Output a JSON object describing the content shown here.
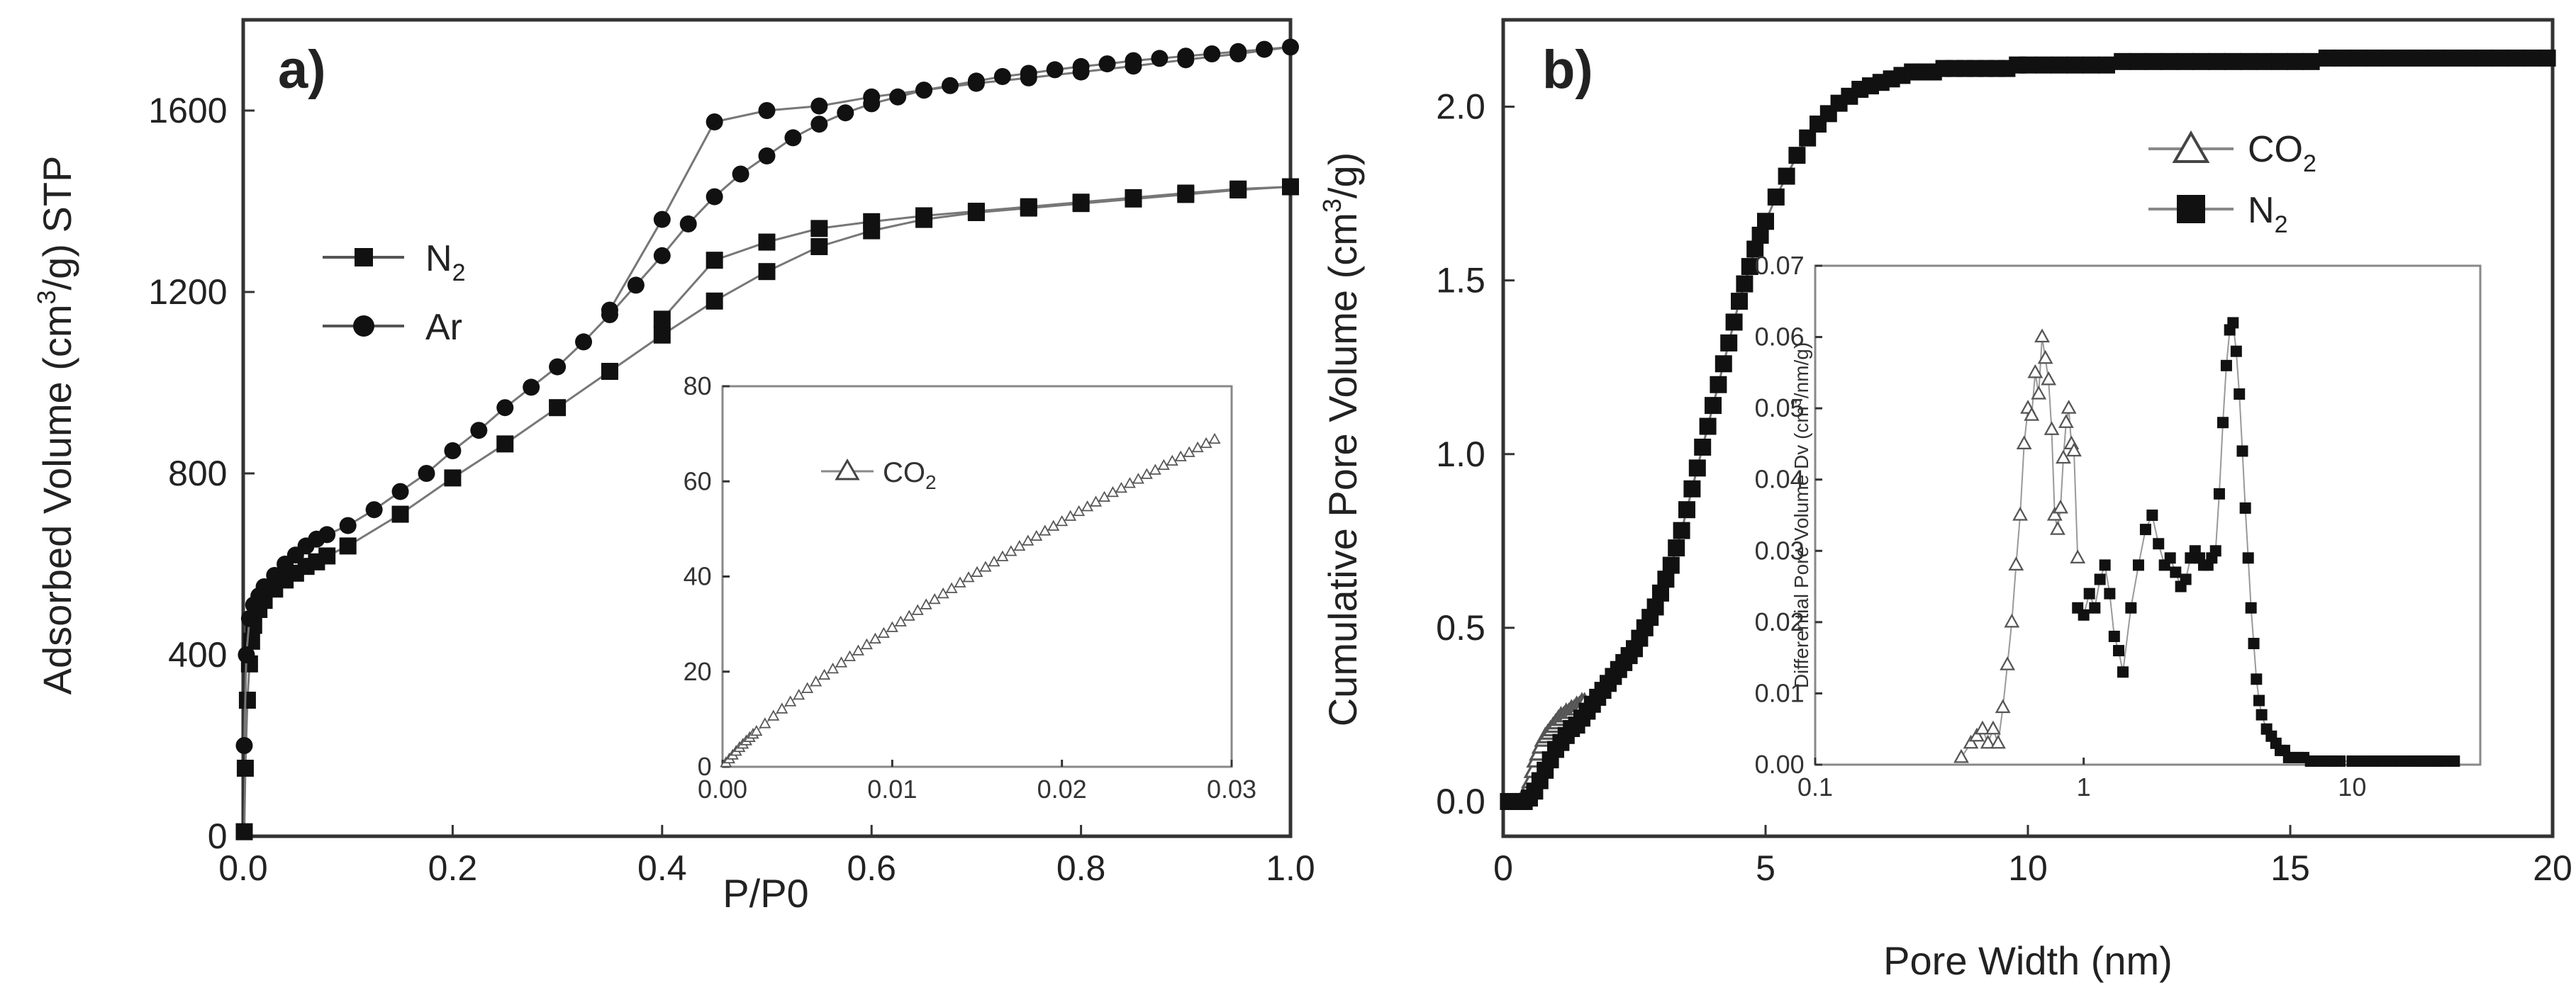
{
  "chart_data": [
    {
      "panel_label": "a)",
      "type": "line",
      "xlabel": "P/P0",
      "ylabel_parts": [
        "Adsorbed Volume (cm",
        "3",
        "/g) STP"
      ],
      "xlim": [
        0,
        1.0
      ],
      "ylim": [
        0,
        1800
      ],
      "xticks": [
        "0.0",
        "0.2",
        "0.4",
        "0.6",
        "0.8",
        "1.0"
      ],
      "yticks": [
        "0",
        "400",
        "800",
        "1200",
        "1600"
      ],
      "series": [
        {
          "name": "N2",
          "label": "N",
          "sub": "2",
          "marker": "square",
          "x": [
            0.001,
            0.002,
            0.004,
            0.006,
            0.008,
            0.01,
            0.015,
            0.02,
            0.03,
            0.04,
            0.05,
            0.06,
            0.07,
            0.08,
            0.1,
            0.15,
            0.2,
            0.25,
            0.3,
            0.35,
            0.4,
            0.45,
            0.5,
            0.55,
            0.6,
            0.65,
            0.7,
            0.75,
            0.8,
            0.85,
            0.9,
            0.95,
            1.0,
            0.95,
            0.9,
            0.85,
            0.8,
            0.75,
            0.7,
            0.65,
            0.6,
            0.55,
            0.5,
            0.45,
            0.4
          ],
          "y": [
            10,
            150,
            300,
            380,
            430,
            465,
            500,
            520,
            545,
            565,
            580,
            595,
            605,
            618,
            640,
            710,
            790,
            865,
            945,
            1025,
            1105,
            1180,
            1245,
            1300,
            1335,
            1360,
            1375,
            1385,
            1395,
            1405,
            1415,
            1425,
            1432,
            1427,
            1418,
            1408,
            1398,
            1388,
            1378,
            1368,
            1355,
            1340,
            1310,
            1270,
            1140
          ]
        },
        {
          "name": "Ar",
          "label": "Ar",
          "marker": "circle",
          "x": [
            0.001,
            0.003,
            0.006,
            0.01,
            0.015,
            0.02,
            0.03,
            0.04,
            0.05,
            0.06,
            0.07,
            0.08,
            0.1,
            0.125,
            0.15,
            0.175,
            0.2,
            0.225,
            0.25,
            0.275,
            0.3,
            0.325,
            0.35,
            0.375,
            0.4,
            0.425,
            0.45,
            0.475,
            0.5,
            0.525,
            0.55,
            0.575,
            0.6,
            0.625,
            0.65,
            0.675,
            0.7,
            0.725,
            0.75,
            0.775,
            0.8,
            0.825,
            0.85,
            0.875,
            0.9,
            0.925,
            0.95,
            0.975,
            1.0,
            0.95,
            0.9,
            0.85,
            0.8,
            0.75,
            0.7,
            0.65,
            0.6,
            0.55,
            0.5,
            0.45,
            0.4,
            0.35
          ],
          "y": [
            200,
            400,
            480,
            510,
            530,
            550,
            575,
            600,
            620,
            640,
            655,
            665,
            685,
            720,
            760,
            800,
            850,
            895,
            945,
            990,
            1035,
            1090,
            1150,
            1215,
            1280,
            1350,
            1410,
            1460,
            1500,
            1540,
            1570,
            1595,
            1615,
            1630,
            1645,
            1655,
            1665,
            1675,
            1682,
            1690,
            1697,
            1703,
            1710,
            1715,
            1720,
            1725,
            1730,
            1735,
            1740,
            1725,
            1712,
            1698,
            1685,
            1672,
            1660,
            1645,
            1630,
            1610,
            1600,
            1575,
            1360,
            1160
          ]
        }
      ],
      "inset": {
        "type": "line",
        "xlim": [
          0,
          0.03
        ],
        "ylim": [
          0,
          80
        ],
        "xticks": [
          "0.00",
          "0.01",
          "0.02",
          "0.03"
        ],
        "yticks": [
          "0",
          "20",
          "40",
          "60",
          "80"
        ],
        "series": [
          {
            "name": "CO2",
            "label": "CO",
            "sub": "2",
            "marker": "triangle-open",
            "x": [
              0.0002,
              0.0004,
              0.0006,
              0.0008,
              0.001,
              0.0012,
              0.0014,
              0.0016,
              0.0018,
              0.002,
              0.0025,
              0.003,
              0.0035,
              0.004,
              0.0045,
              0.005,
              0.0055,
              0.006,
              0.0065,
              0.007,
              0.0075,
              0.008,
              0.0085,
              0.009,
              0.0095,
              0.01,
              0.0105,
              0.011,
              0.0115,
              0.012,
              0.0125,
              0.013,
              0.0135,
              0.014,
              0.0145,
              0.015,
              0.0155,
              0.016,
              0.0165,
              0.017,
              0.0175,
              0.018,
              0.0185,
              0.019,
              0.0195,
              0.02,
              0.0205,
              0.021,
              0.0215,
              0.022,
              0.0225,
              0.023,
              0.0235,
              0.024,
              0.0245,
              0.025,
              0.0255,
              0.026,
              0.0265,
              0.027,
              0.0275,
              0.028,
              0.0285,
              0.029
            ],
            "y": [
              0.8,
              1.6,
              2.4,
              3.2,
              4.0,
              4.7,
              5.4,
              6.1,
              6.8,
              7.4,
              9.0,
              10.6,
              12.1,
              13.6,
              15.0,
              16.4,
              17.8,
              19.2,
              20.5,
              21.8,
              23.1,
              24.3,
              25.6,
              26.8,
              28.0,
              29.2,
              30.4,
              31.6,
              32.8,
              34.0,
              35.1,
              36.3,
              37.4,
              38.6,
              39.7,
              40.8,
              41.9,
              43.0,
              44.1,
              45.2,
              46.3,
              47.4,
              48.4,
              49.5,
              50.5,
              51.5,
              52.6,
              53.6,
              54.6,
              55.6,
              56.6,
              57.6,
              58.5,
              59.5,
              60.4,
              61.4,
              62.3,
              63.3,
              64.2,
              65.1,
              66.0,
              67.0,
              67.9,
              68.8
            ]
          }
        ]
      }
    },
    {
      "panel_label": "b)",
      "type": "scatter",
      "xlabel": "Pore Width (nm)",
      "ylabel_parts": [
        "Cumulative Pore Volume (cm",
        "3",
        "/g)"
      ],
      "xlim": [
        0,
        20
      ],
      "ylim": [
        -0.1,
        2.25
      ],
      "xticks": [
        "0",
        "5",
        "10",
        "15",
        "20"
      ],
      "yticks": [
        "0.0",
        "0.5",
        "1.0",
        "1.5",
        "2.0"
      ],
      "series": [
        {
          "name": "CO2",
          "label": "CO",
          "sub": "2",
          "marker": "triangle-open",
          "x": [
            0.35,
            0.4,
            0.45,
            0.5,
            0.55,
            0.6,
            0.65,
            0.7,
            0.75,
            0.8,
            0.85,
            0.9,
            0.95,
            1.0,
            1.05,
            1.1,
            1.15,
            1.2,
            1.25,
            1.3,
            1.35,
            1.4,
            1.45,
            1.5,
            1.55
          ],
          "y": [
            0.0,
            0.01,
            0.02,
            0.04,
            0.06,
            0.09,
            0.12,
            0.14,
            0.16,
            0.18,
            0.19,
            0.2,
            0.21,
            0.22,
            0.23,
            0.24,
            0.24,
            0.25,
            0.25,
            0.26,
            0.26,
            0.27,
            0.27,
            0.28,
            0.28
          ]
        },
        {
          "name": "N2",
          "label": "N",
          "sub": "2",
          "marker": "square",
          "x": [
            0.1,
            0.2,
            0.3,
            0.4,
            0.5,
            0.6,
            0.7,
            0.8,
            0.9,
            1.0,
            1.1,
            1.2,
            1.3,
            1.4,
            1.5,
            1.6,
            1.7,
            1.8,
            1.9,
            2.0,
            2.1,
            2.2,
            2.3,
            2.4,
            2.5,
            2.6,
            2.7,
            2.8,
            2.9,
            3.0,
            3.1,
            3.2,
            3.3,
            3.4,
            3.5,
            3.6,
            3.7,
            3.8,
            3.9,
            4.0,
            4.1,
            4.2,
            4.3,
            4.4,
            4.5,
            4.6,
            4.7,
            4.8,
            4.9,
            5.0,
            5.2,
            5.4,
            5.6,
            5.8,
            6.0,
            6.2,
            6.4,
            6.6,
            6.8,
            7.0,
            7.2,
            7.4,
            7.6,
            7.8,
            8.0,
            8.2,
            8.4,
            8.6,
            8.8,
            9.0,
            9.2,
            9.4,
            9.6,
            9.8,
            10.0,
            10.3,
            10.6,
            10.9,
            11.2,
            11.5,
            11.8,
            12.1,
            12.4,
            12.7,
            13.0,
            13.3,
            13.6,
            13.9,
            14.2,
            14.5,
            14.8,
            15.1,
            15.4,
            15.7,
            16.0,
            16.3,
            16.6,
            16.9,
            17.2,
            17.5,
            17.8,
            18.1,
            18.4,
            18.7,
            19.0,
            19.3,
            19.6,
            19.9
          ],
          "y": [
            0.0,
            0.0,
            0.0,
            0.0,
            0.01,
            0.03,
            0.06,
            0.09,
            0.12,
            0.15,
            0.17,
            0.19,
            0.21,
            0.22,
            0.24,
            0.26,
            0.28,
            0.3,
            0.32,
            0.34,
            0.36,
            0.38,
            0.4,
            0.42,
            0.44,
            0.47,
            0.5,
            0.53,
            0.56,
            0.6,
            0.64,
            0.68,
            0.73,
            0.78,
            0.84,
            0.9,
            0.96,
            1.02,
            1.08,
            1.14,
            1.2,
            1.26,
            1.32,
            1.38,
            1.44,
            1.49,
            1.54,
            1.59,
            1.63,
            1.67,
            1.74,
            1.8,
            1.86,
            1.91,
            1.95,
            1.98,
            2.01,
            2.03,
            2.05,
            2.06,
            2.07,
            2.08,
            2.09,
            2.1,
            2.1,
            2.1,
            2.11,
            2.11,
            2.11,
            2.11,
            2.11,
            2.11,
            2.11,
            2.12,
            2.12,
            2.12,
            2.12,
            2.12,
            2.12,
            2.12,
            2.13,
            2.13,
            2.13,
            2.13,
            2.13,
            2.13,
            2.13,
            2.13,
            2.13,
            2.13,
            2.13,
            2.13,
            2.13,
            2.14,
            2.14,
            2.14,
            2.14,
            2.14,
            2.14,
            2.14,
            2.14,
            2.14,
            2.14,
            2.14,
            2.14,
            2.14,
            2.14,
            2.14
          ]
        }
      ],
      "inset": {
        "type": "line",
        "xscale": "log",
        "xlim": [
          0.1,
          30
        ],
        "ylim": [
          0,
          0.07
        ],
        "xticks": [
          "0.1",
          "1",
          "10"
        ],
        "yticks": [
          "0.00",
          "0.01",
          "0.02",
          "0.03",
          "0.04",
          "0.05",
          "0.06",
          "0.07"
        ],
        "ylabel_parts": [
          "Differential  Pore Volume Dv (cm",
          "3",
          "/nm/g)"
        ],
        "series": [
          {
            "name": "CO2",
            "marker": "triangle-open",
            "x": [
              0.35,
              0.38,
              0.4,
              0.42,
              0.44,
              0.46,
              0.48,
              0.5,
              0.52,
              0.54,
              0.56,
              0.58,
              0.6,
              0.62,
              0.64,
              0.66,
              0.68,
              0.7,
              0.72,
              0.74,
              0.76,
              0.78,
              0.8,
              0.82,
              0.84,
              0.86,
              0.88,
              0.9,
              0.92,
              0.95
            ],
            "y": [
              0.001,
              0.003,
              0.004,
              0.005,
              0.003,
              0.005,
              0.003,
              0.008,
              0.014,
              0.02,
              0.028,
              0.035,
              0.045,
              0.05,
              0.049,
              0.055,
              0.052,
              0.06,
              0.057,
              0.054,
              0.047,
              0.035,
              0.033,
              0.036,
              0.043,
              0.048,
              0.05,
              0.045,
              0.044,
              0.029
            ]
          },
          {
            "name": "N2",
            "marker": "square",
            "x": [
              0.95,
              1.0,
              1.05,
              1.1,
              1.15,
              1.2,
              1.25,
              1.3,
              1.35,
              1.4,
              1.5,
              1.6,
              1.7,
              1.8,
              1.9,
              2.0,
              2.1,
              2.2,
              2.3,
              2.4,
              2.5,
              2.6,
              2.7,
              2.8,
              2.9,
              3.0,
              3.1,
              3.2,
              3.3,
              3.4,
              3.5,
              3.6,
              3.7,
              3.8,
              3.9,
              4.0,
              4.1,
              4.2,
              4.3,
              4.4,
              4.5,
              4.6,
              4.8,
              5.0,
              5.2,
              5.4,
              5.6,
              5.8,
              6.0,
              6.3,
              6.6,
              7.0,
              7.5,
              8.0,
              8.5,
              9.0,
              10,
              11,
              12,
              13,
              14,
              15,
              16,
              17,
              18,
              19,
              20,
              21,
              22,
              24
            ],
            "y": [
              0.022,
              0.021,
              0.024,
              0.022,
              0.026,
              0.028,
              0.024,
              0.018,
              0.016,
              0.013,
              0.022,
              0.028,
              0.033,
              0.035,
              0.031,
              0.028,
              0.029,
              0.027,
              0.025,
              0.026,
              0.029,
              0.03,
              0.029,
              0.028,
              0.028,
              0.029,
              0.03,
              0.038,
              0.048,
              0.056,
              0.061,
              0.062,
              0.058,
              0.052,
              0.044,
              0.036,
              0.029,
              0.022,
              0.017,
              0.012,
              0.009,
              0.007,
              0.005,
              0.004,
              0.003,
              0.002,
              0.002,
              0.001,
              0.001,
              0.001,
              0.001,
              0.0005,
              0.0005,
              0.0005,
              0.0005,
              0.0005,
              0.0005,
              0.0005,
              0.0005,
              0.0005,
              0.0005,
              0.0005,
              0.0005,
              0.0005,
              0.0005,
              0.0005,
              0.0005,
              0.0005,
              0.0005,
              0.0005
            ]
          }
        ]
      }
    }
  ]
}
